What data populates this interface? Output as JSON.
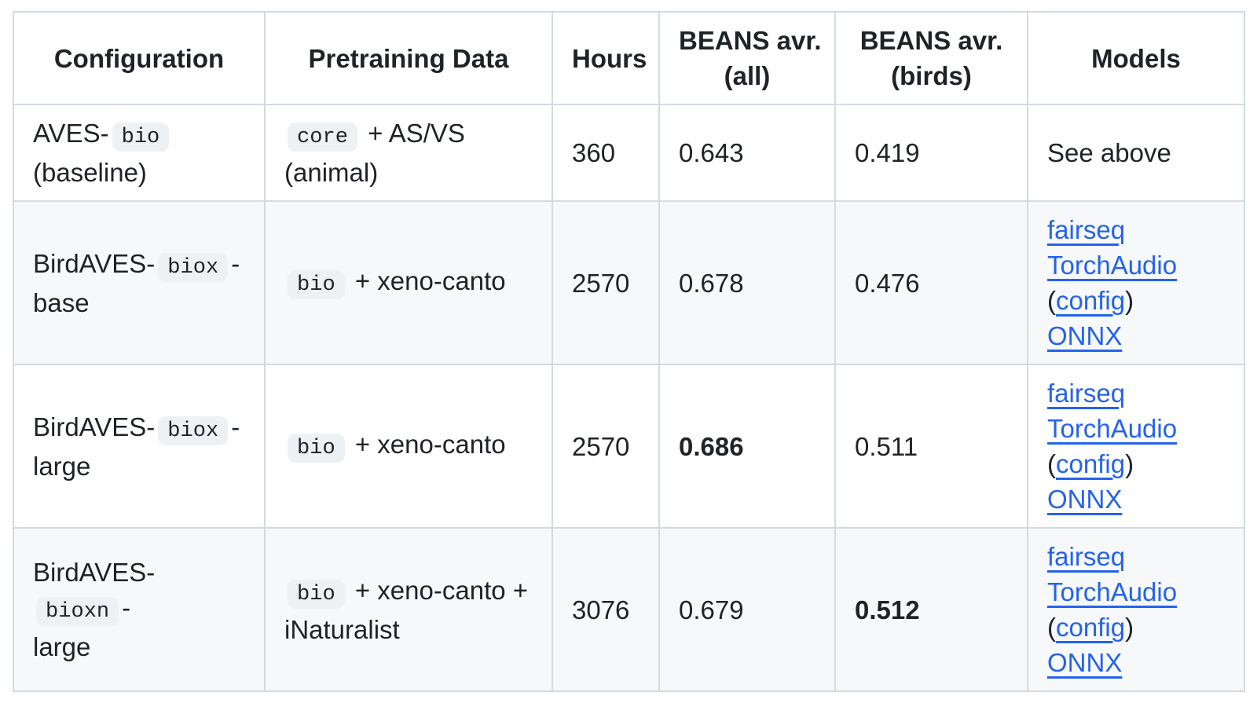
{
  "colors": {
    "text": "#1f2328",
    "link": "#2563eb",
    "border": "#d3dae1",
    "row_alt_background": "#f6f8fa",
    "inline_code_background": "#eef1f4"
  },
  "table": {
    "columns": [
      {
        "id": "configuration",
        "header_lines": [
          "Configuration"
        ]
      },
      {
        "id": "pretraining-data",
        "header_lines": [
          "Pretraining Data"
        ]
      },
      {
        "id": "hours",
        "header_lines": [
          "Hours"
        ]
      },
      {
        "id": "beans-avr-all",
        "header_lines": [
          "BEANS avr.",
          "(all)"
        ]
      },
      {
        "id": "beans-avr-birds",
        "header_lines": [
          "BEANS avr.",
          "(birds)"
        ]
      },
      {
        "id": "models",
        "header_lines": [
          "Models"
        ]
      }
    ],
    "rows": [
      {
        "cells": [
          [
            {
              "t": "text",
              "v": "AVES-"
            },
            {
              "t": "code",
              "v": "bio"
            },
            {
              "t": "br"
            },
            {
              "t": "text",
              "v": "(baseline)"
            }
          ],
          [
            {
              "t": "code",
              "v": "core"
            },
            {
              "t": "text",
              "v": " + AS/VS"
            },
            {
              "t": "br"
            },
            {
              "t": "text",
              "v": "(animal)"
            }
          ],
          [
            {
              "t": "text",
              "v": "360"
            }
          ],
          [
            {
              "t": "text",
              "v": "0.643"
            }
          ],
          [
            {
              "t": "text",
              "v": "0.419"
            }
          ],
          [
            {
              "t": "text",
              "v": "See above"
            }
          ]
        ]
      },
      {
        "cells": [
          [
            {
              "t": "text",
              "v": "BirdAVES-"
            },
            {
              "t": "code",
              "v": "biox"
            },
            {
              "t": "text",
              "v": "-"
            },
            {
              "t": "br"
            },
            {
              "t": "text",
              "v": "base"
            }
          ],
          [
            {
              "t": "code",
              "v": "bio"
            },
            {
              "t": "text",
              "v": " + xeno-canto"
            }
          ],
          [
            {
              "t": "text",
              "v": "2570"
            }
          ],
          [
            {
              "t": "text",
              "v": "0.678"
            }
          ],
          [
            {
              "t": "text",
              "v": "0.476"
            }
          ],
          [
            {
              "t": "link",
              "v": "fairseq"
            },
            {
              "t": "br"
            },
            {
              "t": "link",
              "v": "TorchAudio"
            },
            {
              "t": "br"
            },
            {
              "t": "text",
              "v": "("
            },
            {
              "t": "link",
              "v": "config"
            },
            {
              "t": "text",
              "v": ")"
            },
            {
              "t": "br"
            },
            {
              "t": "link",
              "v": "ONNX"
            }
          ]
        ]
      },
      {
        "cells": [
          [
            {
              "t": "text",
              "v": "BirdAVES-"
            },
            {
              "t": "code",
              "v": "biox"
            },
            {
              "t": "text",
              "v": "-"
            },
            {
              "t": "br"
            },
            {
              "t": "text",
              "v": "large"
            }
          ],
          [
            {
              "t": "code",
              "v": "bio"
            },
            {
              "t": "text",
              "v": " + xeno-canto"
            }
          ],
          [
            {
              "t": "text",
              "v": "2570"
            }
          ],
          [
            {
              "t": "b",
              "v": "0.686"
            }
          ],
          [
            {
              "t": "text",
              "v": "0.511"
            }
          ],
          [
            {
              "t": "link",
              "v": "fairseq"
            },
            {
              "t": "br"
            },
            {
              "t": "link",
              "v": "TorchAudio"
            },
            {
              "t": "br"
            },
            {
              "t": "text",
              "v": "("
            },
            {
              "t": "link",
              "v": "config"
            },
            {
              "t": "text",
              "v": ")"
            },
            {
              "t": "br"
            },
            {
              "t": "link",
              "v": "ONNX"
            }
          ]
        ]
      },
      {
        "cells": [
          [
            {
              "t": "text",
              "v": "BirdAVES-"
            },
            {
              "t": "code",
              "v": "bioxn"
            },
            {
              "t": "text",
              "v": "-"
            },
            {
              "t": "br"
            },
            {
              "t": "text",
              "v": "large"
            }
          ],
          [
            {
              "t": "code",
              "v": "bio"
            },
            {
              "t": "text",
              "v": " + xeno-canto +"
            },
            {
              "t": "br"
            },
            {
              "t": "text",
              "v": "iNaturalist"
            }
          ],
          [
            {
              "t": "text",
              "v": "3076"
            }
          ],
          [
            {
              "t": "text",
              "v": "0.679"
            }
          ],
          [
            {
              "t": "b",
              "v": "0.512"
            }
          ],
          [
            {
              "t": "link",
              "v": "fairseq"
            },
            {
              "t": "br"
            },
            {
              "t": "link",
              "v": "TorchAudio"
            },
            {
              "t": "br"
            },
            {
              "t": "text",
              "v": "("
            },
            {
              "t": "link",
              "v": "config"
            },
            {
              "t": "text",
              "v": ")"
            },
            {
              "t": "br"
            },
            {
              "t": "link",
              "v": "ONNX"
            }
          ]
        ]
      }
    ]
  }
}
